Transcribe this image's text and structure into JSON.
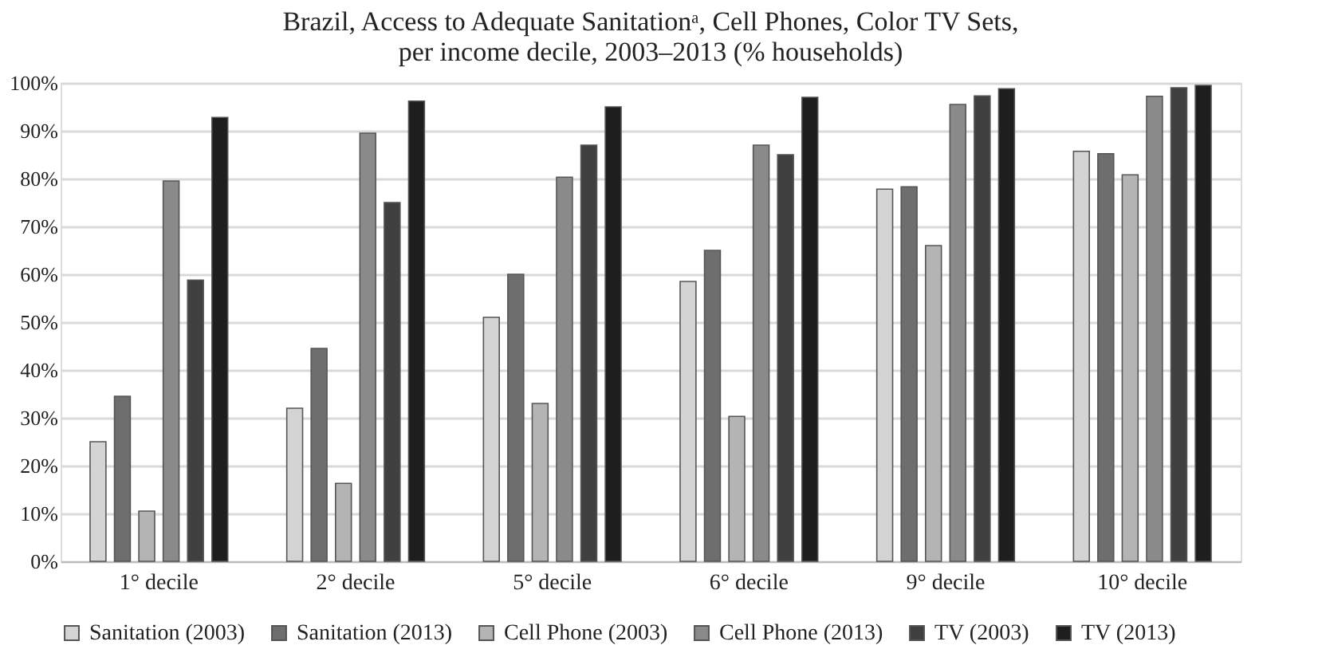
{
  "chart_data": {
    "type": "bar",
    "title": [
      "Brazil, Access to Adequate Sanitationᵃ, Cell Phones, Color TV Sets,",
      "per income decile, 2003–2013 (% households)"
    ],
    "categories": [
      "1° decile",
      "2° decile",
      "5° decile",
      "6° decile",
      "9° decile",
      "10° decile"
    ],
    "series": [
      {
        "name": "Sanitation (2003)",
        "color": "#d4d4d4",
        "values": [
          25,
          32,
          51,
          58.5,
          77.8,
          85.7
        ]
      },
      {
        "name": "Sanitation (2013)",
        "color": "#6e6e6e",
        "values": [
          34.5,
          44.5,
          60,
          65,
          78.3,
          85.2
        ]
      },
      {
        "name": "Cell Phone (2003)",
        "color": "#b4b4b4",
        "values": [
          10.5,
          16.3,
          33,
          30.3,
          66,
          80.8
        ]
      },
      {
        "name": "Cell Phone (2013)",
        "color": "#8a8a8a",
        "values": [
          79.5,
          89.5,
          80.3,
          87,
          95.5,
          97.2
        ]
      },
      {
        "name": "TV (2003)",
        "color": "#404040",
        "values": [
          58.8,
          75,
          87,
          85,
          97.3,
          99
        ]
      },
      {
        "name": "TV (2013)",
        "color": "#1e1e1e",
        "values": [
          92.8,
          96.2,
          95,
          97,
          98.8,
          99.5
        ]
      }
    ],
    "ylim": [
      0,
      100
    ],
    "yticks": [
      {
        "value": 0,
        "label": "0%"
      },
      {
        "value": 10,
        "label": "10%"
      },
      {
        "value": 20,
        "label": "20%"
      },
      {
        "value": 30,
        "label": "30%"
      },
      {
        "value": 40,
        "label": "40%"
      },
      {
        "value": 50,
        "label": "50%"
      },
      {
        "value": 60,
        "label": "60%"
      },
      {
        "value": 70,
        "label": "70%"
      },
      {
        "value": 80,
        "label": "80%"
      },
      {
        "value": 90,
        "label": "90%"
      },
      {
        "value": 100,
        "label": "100%"
      }
    ],
    "grid": "y",
    "legend": "bottom"
  }
}
